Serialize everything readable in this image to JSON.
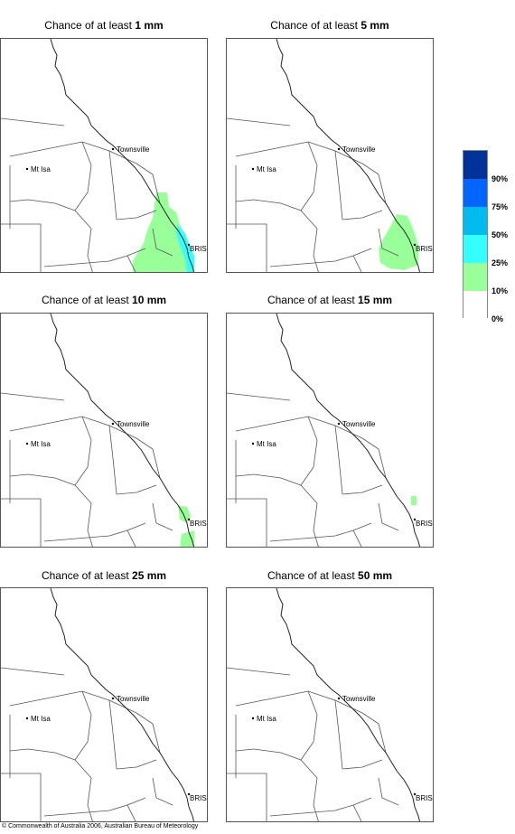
{
  "panels": [
    {
      "prefix": "Chance of at least ",
      "amount": "1 mm"
    },
    {
      "prefix": "Chance of at least ",
      "amount": "5 mm"
    },
    {
      "prefix": "Chance of at least ",
      "amount": "10 mm"
    },
    {
      "prefix": "Chance of at least ",
      "amount": "15 mm"
    },
    {
      "prefix": "Chance of at least ",
      "amount": "25 mm"
    },
    {
      "prefix": "Chance of at least ",
      "amount": "50 mm"
    }
  ],
  "map_labels": {
    "townsville": "Townsville",
    "mt_isa": "Mt Isa",
    "brisbane": "BRIS"
  },
  "legend": {
    "labels": [
      "90%",
      "75%",
      "50%",
      "25%",
      "10%",
      "0%"
    ],
    "colors": [
      "#003399",
      "#0066ff",
      "#00bbee",
      "#33ffff",
      "#99ff99",
      "#ffffff"
    ]
  },
  "footer": "© Commonwealth of Australia 2006, Australian Bureau of Meteorology"
}
